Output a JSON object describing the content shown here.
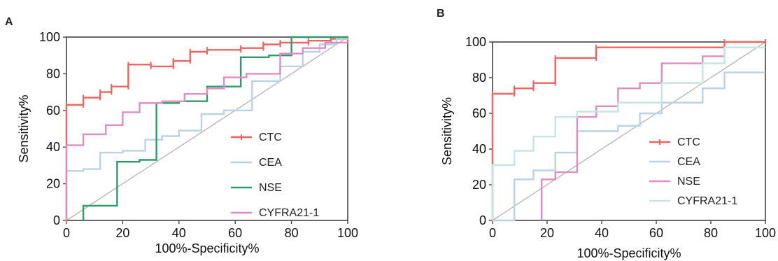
{
  "chart_data": [
    {
      "panel_label": "A",
      "type": "line",
      "xlabel": "100%-Specificity%",
      "ylabel": "Sensitivity%",
      "xlim": [
        0,
        100
      ],
      "ylim": [
        0,
        100
      ],
      "x_ticks": [
        "0",
        "20",
        "40",
        "60",
        "80",
        "100"
      ],
      "y_ticks": [
        "0",
        "20",
        "40",
        "60",
        "80",
        "100"
      ],
      "legend_position": "bottom-right",
      "series": [
        {
          "name": "CTC",
          "color": "#f0645f",
          "markers": true,
          "points": [
            [
              0,
              0
            ],
            [
              0,
              63
            ],
            [
              6,
              63
            ],
            [
              6,
              67
            ],
            [
              12,
              67
            ],
            [
              12,
              70
            ],
            [
              16,
              70
            ],
            [
              16,
              73
            ],
            [
              22,
              73
            ],
            [
              22,
              85
            ],
            [
              30,
              85
            ],
            [
              30,
              84
            ],
            [
              38,
              84
            ],
            [
              38,
              87
            ],
            [
              44,
              87
            ],
            [
              44,
              92
            ],
            [
              50,
              92
            ],
            [
              50,
              93
            ],
            [
              62,
              93
            ],
            [
              62,
              94
            ],
            [
              70,
              94
            ],
            [
              70,
              96
            ],
            [
              76,
              96
            ],
            [
              76,
              97
            ],
            [
              86,
              97
            ],
            [
              86,
              98
            ],
            [
              94,
              98
            ],
            [
              94,
              99
            ],
            [
              100,
              99
            ]
          ]
        },
        {
          "name": "CEA",
          "color": "#b9d3e6",
          "markers": false,
          "points": [
            [
              0,
              0
            ],
            [
              0,
              27
            ],
            [
              6,
              27
            ],
            [
              6,
              28
            ],
            [
              12,
              28
            ],
            [
              12,
              37
            ],
            [
              20,
              37
            ],
            [
              20,
              38
            ],
            [
              28,
              38
            ],
            [
              28,
              44
            ],
            [
              34,
              44
            ],
            [
              34,
              46
            ],
            [
              40,
              46
            ],
            [
              40,
              49
            ],
            [
              48,
              49
            ],
            [
              48,
              58
            ],
            [
              56,
              58
            ],
            [
              56,
              60
            ],
            [
              66,
              60
            ],
            [
              66,
              76
            ],
            [
              76,
              76
            ],
            [
              76,
              84
            ],
            [
              84,
              84
            ],
            [
              84,
              92
            ],
            [
              90,
              92
            ],
            [
              90,
              96
            ],
            [
              96,
              96
            ],
            [
              96,
              99
            ],
            [
              100,
              99
            ]
          ]
        },
        {
          "name": "NSE",
          "color": "#2e9c6a",
          "markers": false,
          "points": [
            [
              6,
              0
            ],
            [
              6,
              8
            ],
            [
              18,
              8
            ],
            [
              18,
              32
            ],
            [
              26,
              32
            ],
            [
              26,
              33
            ],
            [
              32,
              33
            ],
            [
              32,
              64
            ],
            [
              40,
              64
            ],
            [
              40,
              65
            ],
            [
              50,
              65
            ],
            [
              50,
              73
            ],
            [
              62,
              73
            ],
            [
              62,
              89
            ],
            [
              72,
              89
            ],
            [
              72,
              90
            ],
            [
              80,
              90
            ],
            [
              80,
              100
            ],
            [
              100,
              100
            ]
          ]
        },
        {
          "name": "CYFRA21-1",
          "color": "#e08cc2",
          "markers": false,
          "points": [
            [
              0,
              0
            ],
            [
              0,
              41
            ],
            [
              6,
              41
            ],
            [
              6,
              47
            ],
            [
              14,
              47
            ],
            [
              14,
              52
            ],
            [
              20,
              52
            ],
            [
              20,
              59
            ],
            [
              26,
              59
            ],
            [
              26,
              64
            ],
            [
              34,
              64
            ],
            [
              34,
              65
            ],
            [
              42,
              65
            ],
            [
              42,
              69
            ],
            [
              50,
              69
            ],
            [
              50,
              72
            ],
            [
              56,
              72
            ],
            [
              56,
              78
            ],
            [
              64,
              78
            ],
            [
              64,
              80
            ],
            [
              76,
              80
            ],
            [
              76,
              91
            ],
            [
              84,
              91
            ],
            [
              84,
              94
            ],
            [
              92,
              94
            ],
            [
              92,
              97
            ],
            [
              100,
              97
            ]
          ]
        }
      ]
    },
    {
      "panel_label": "B",
      "type": "line",
      "xlabel": "100%-Specificity%",
      "ylabel": "Sensitivity%",
      "xlim": [
        0,
        100
      ],
      "ylim": [
        0,
        100
      ],
      "x_ticks": [
        "0",
        "20",
        "40",
        "60",
        "80",
        "100"
      ],
      "y_ticks": [
        "0",
        "20",
        "40",
        "60",
        "80",
        "100"
      ],
      "legend_position": "bottom-right",
      "series": [
        {
          "name": "CTC",
          "color": "#f0645f",
          "markers": true,
          "points": [
            [
              0,
              0
            ],
            [
              0,
              71
            ],
            [
              8,
              71
            ],
            [
              8,
              74
            ],
            [
              15,
              74
            ],
            [
              15,
              77
            ],
            [
              23,
              77
            ],
            [
              23,
              91
            ],
            [
              38,
              91
            ],
            [
              38,
              97
            ],
            [
              85,
              97
            ],
            [
              85,
              100
            ],
            [
              100,
              100
            ]
          ]
        },
        {
          "name": "CEA",
          "color": "#b9d3e6",
          "markers": false,
          "points": [
            [
              0,
              0
            ],
            [
              8,
              0
            ],
            [
              8,
              23
            ],
            [
              15,
              23
            ],
            [
              15,
              28
            ],
            [
              23,
              28
            ],
            [
              23,
              38
            ],
            [
              31,
              38
            ],
            [
              31,
              50
            ],
            [
              46,
              50
            ],
            [
              46,
              53
            ],
            [
              54,
              53
            ],
            [
              54,
              60
            ],
            [
              62,
              60
            ],
            [
              62,
              66
            ],
            [
              77,
              66
            ],
            [
              77,
              74
            ],
            [
              85,
              74
            ],
            [
              85,
              83
            ],
            [
              100,
              83
            ]
          ]
        },
        {
          "name": "NSE",
          "color": "#e08cc2",
          "markers": false,
          "points": [
            [
              18,
              0
            ],
            [
              18,
              23
            ],
            [
              23,
              23
            ],
            [
              23,
              27
            ],
            [
              31,
              27
            ],
            [
              31,
              58
            ],
            [
              38,
              58
            ],
            [
              38,
              64
            ],
            [
              46,
              64
            ],
            [
              46,
              74
            ],
            [
              54,
              74
            ],
            [
              54,
              77
            ],
            [
              62,
              77
            ],
            [
              62,
              88
            ],
            [
              77,
              88
            ],
            [
              77,
              92
            ],
            [
              85,
              92
            ],
            [
              85,
              97
            ],
            [
              100,
              97
            ]
          ]
        },
        {
          "name": "CYFRA21-1",
          "color": "#c3e6e2",
          "markers": false,
          "points": [
            [
              0,
              0
            ],
            [
              0,
              31
            ],
            [
              8,
              31
            ],
            [
              8,
              39
            ],
            [
              15,
              39
            ],
            [
              15,
              47
            ],
            [
              23,
              47
            ],
            [
              23,
              58
            ],
            [
              31,
              58
            ],
            [
              31,
              61
            ],
            [
              46,
              61
            ],
            [
              46,
              66
            ],
            [
              62,
              66
            ],
            [
              62,
              77
            ],
            [
              77,
              77
            ],
            [
              77,
              88
            ],
            [
              85,
              88
            ],
            [
              85,
              97
            ],
            [
              100,
              97
            ]
          ]
        }
      ]
    }
  ]
}
